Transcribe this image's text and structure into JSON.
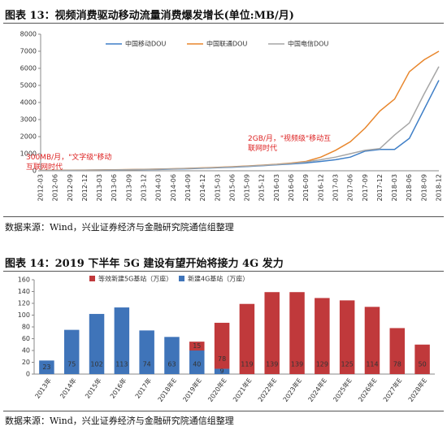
{
  "chart_data": [
    {
      "type": "line",
      "title": "图表 13：视频消费驱动移动流量消费爆发增长(单位:MB/月)",
      "categories": [
        "2012-03",
        "2012-06",
        "2012-09",
        "2012-12",
        "2013-03",
        "2013-06",
        "2013-09",
        "2013-12",
        "2014-03",
        "2014-06",
        "2014-09",
        "2014-12",
        "2015-03",
        "2015-06",
        "2015-09",
        "2015-12",
        "2016-03",
        "2016-06",
        "2016-09",
        "2016-12",
        "2017-03",
        "2017-06",
        "2017-09",
        "2017-12",
        "2018-03",
        "2018-06",
        "2018-09",
        "2018-12"
      ],
      "series": [
        {
          "name": "中国移动DOU",
          "color": "#3f7fc7",
          "values": [
            20,
            25,
            30,
            35,
            40,
            50,
            60,
            70,
            80,
            100,
            120,
            150,
            180,
            210,
            250,
            300,
            350,
            400,
            460,
            550,
            650,
            800,
            1150,
            1250,
            1250,
            1900,
            3600,
            5300
          ]
        },
        {
          "name": "中国联通DOU",
          "color": "#e8862c",
          "values": [
            25,
            30,
            35,
            40,
            50,
            60,
            70,
            85,
            100,
            120,
            140,
            170,
            200,
            240,
            280,
            330,
            380,
            450,
            550,
            800,
            1200,
            1700,
            2500,
            3500,
            4200,
            5800,
            6500,
            7000
          ]
        },
        {
          "name": "中国电信DOU",
          "color": "#a6a6a6",
          "values": [
            20,
            25,
            30,
            35,
            45,
            55,
            65,
            80,
            95,
            115,
            135,
            160,
            190,
            225,
            265,
            315,
            370,
            430,
            520,
            650,
            800,
            1000,
            1200,
            1300,
            2100,
            2800,
            4500,
            6100
          ]
        }
      ],
      "ylim": [
        0,
        8000
      ],
      "yticks": [
        0,
        1000,
        2000,
        3000,
        4000,
        5000,
        6000,
        7000,
        8000
      ],
      "annotations": [
        "300MB/月，\"文字级\"移动互联网时代",
        "2GB/月，\"视频级\"移动互联网时代"
      ],
      "source": "数据来源：Wind，兴业证券经济与金融研究院通信组整理"
    },
    {
      "type": "bar",
      "stacked": true,
      "title": "图表 14：2019 下半年 5G 建设有望开始将接力 4G 发力",
      "categories": [
        "2013年",
        "2014年",
        "2015年",
        "2016年",
        "2017年",
        "2018年E",
        "2019年E",
        "2020年E",
        "2021年E",
        "2022年E",
        "2023年E",
        "2024年E",
        "2025年E",
        "2026年E",
        "2027年E",
        "2028年E"
      ],
      "series": [
        {
          "name": "新建4G基站（万座）",
          "color": "#3f74b9",
          "values": [
            23,
            75,
            102,
            113,
            74,
            63,
            40,
            9,
            null,
            null,
            null,
            null,
            null,
            null,
            null,
            null
          ]
        },
        {
          "name": "等效新建5G基站（万座）",
          "color": "#c0393b",
          "values": [
            null,
            null,
            null,
            null,
            null,
            null,
            15,
            78,
            119,
            139,
            139,
            129,
            125,
            114,
            78,
            50
          ]
        }
      ],
      "ylim": [
        0,
        160
      ],
      "yticks": [
        0,
        20,
        40,
        60,
        80,
        100,
        120,
        140,
        160
      ],
      "source": "数据来源：Wind，兴业证券经济与金融研究院通信组整理"
    }
  ]
}
